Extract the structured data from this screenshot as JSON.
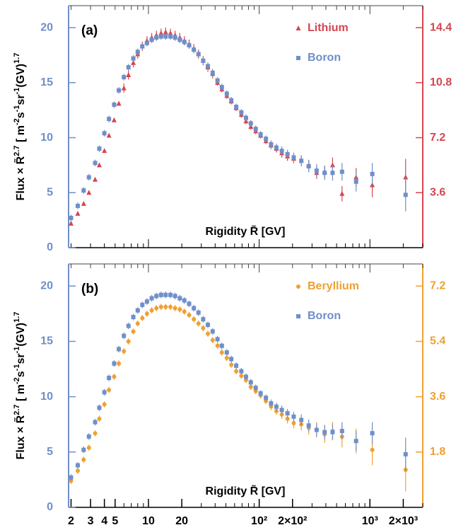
{
  "chart_data": [
    {
      "type": "scatter",
      "panel_label": "(a)",
      "xlabel": "Rigidity R̃ [GV]",
      "ylabel": [
        "Flux × R̃",
        "2.7",
        " [ m",
        "-2",
        "s",
        "-1",
        "sr",
        "-1",
        "(GV)",
        "1.7"
      ],
      "xlog": true,
      "xlim": [
        1.9,
        3000
      ],
      "ylim": [
        0,
        22
      ],
      "yticks": [
        0,
        5,
        10,
        15,
        20
      ],
      "y2lim": [
        0,
        15.84
      ],
      "y2ticks": [
        3.6,
        7.2,
        10.8,
        14.4
      ],
      "legend": "upper right",
      "x": [
        2.0,
        2.3,
        2.6,
        2.9,
        3.3,
        3.6,
        4.0,
        4.4,
        4.9,
        5.4,
        6.0,
        6.6,
        7.3,
        8.0,
        8.8,
        9.7,
        10.7,
        11.8,
        13,
        14.3,
        15.8,
        17.4,
        19.2,
        21.1,
        23.3,
        25.7,
        28.3,
        31.2,
        34.4,
        38,
        42,
        46,
        51,
        56,
        62,
        69,
        76,
        84,
        93,
        103,
        115,
        128,
        143,
        160,
        180,
        205,
        240,
        280,
        330,
        390,
        460,
        560,
        750,
        1050,
        2100
      ],
      "series": [
        {
          "name": "Lithium",
          "color": "#d4464f",
          "marker": "triangle",
          "axis": "y2",
          "values": [
            1.58,
            2.23,
            2.88,
            3.6,
            4.46,
            5.4,
            6.34,
            7.34,
            8.35,
            9.43,
            10.44,
            11.3,
            12.1,
            12.67,
            13.18,
            13.54,
            13.75,
            13.9,
            14.04,
            14.11,
            14.04,
            13.9,
            13.75,
            13.54,
            13.32,
            13.03,
            12.67,
            12.24,
            11.81,
            11.38,
            10.8,
            10.37,
            9.94,
            9.58,
            9.14,
            8.71,
            8.28,
            7.92,
            7.63,
            7.34,
            6.98,
            6.7,
            6.48,
            6.19,
            5.98,
            5.83,
            5.69,
            5.4,
            4.9,
            4.97,
            5.4,
            3.53,
            4.61,
            4.1,
            4.61
          ],
          "errors": [
            0.1,
            0.1,
            0.1,
            0.1,
            0.1,
            0.1,
            0.1,
            0.1,
            0.1,
            0.1,
            0.3,
            0.3,
            0.3,
            0.3,
            0.3,
            0.3,
            0.3,
            0.3,
            0.3,
            0.3,
            0.3,
            0.3,
            0.3,
            0.3,
            0.3,
            0.3,
            0.3,
            0.3,
            0.3,
            0.3,
            0.2,
            0.2,
            0.2,
            0.2,
            0.2,
            0.2,
            0.2,
            0.2,
            0.2,
            0.2,
            0.2,
            0.25,
            0.25,
            0.3,
            0.3,
            0.3,
            0.35,
            0.35,
            0.4,
            0.4,
            0.5,
            0.5,
            0.6,
            0.8,
            1.2
          ]
        },
        {
          "name": "Boron",
          "color": "#6f8fc9",
          "marker": "square",
          "axis": "y",
          "values": [
            2.7,
            3.8,
            5.2,
            6.4,
            7.7,
            9.0,
            10.4,
            11.7,
            13.0,
            14.3,
            15.5,
            16.4,
            17.2,
            17.8,
            18.3,
            18.6,
            18.9,
            19.1,
            19.2,
            19.2,
            19.2,
            19.1,
            18.9,
            18.7,
            18.4,
            18.0,
            17.6,
            17.0,
            16.5,
            15.9,
            15.2,
            14.6,
            14.0,
            13.4,
            12.8,
            12.3,
            11.8,
            11.3,
            10.8,
            10.3,
            9.9,
            9.4,
            9.1,
            8.8,
            8.5,
            8.2,
            7.9,
            7.4,
            7.0,
            6.8,
            6.8,
            6.9,
            6.0,
            6.7,
            4.8
          ],
          "errors": [
            0.3,
            0.3,
            0.3,
            0.3,
            0.3,
            0.3,
            0.3,
            0.3,
            0.3,
            0.3,
            0.3,
            0.3,
            0.3,
            0.3,
            0.3,
            0.3,
            0.3,
            0.3,
            0.3,
            0.3,
            0.3,
            0.3,
            0.3,
            0.3,
            0.3,
            0.3,
            0.3,
            0.3,
            0.3,
            0.3,
            0.3,
            0.3,
            0.3,
            0.3,
            0.3,
            0.3,
            0.3,
            0.3,
            0.3,
            0.3,
            0.3,
            0.35,
            0.35,
            0.4,
            0.4,
            0.45,
            0.5,
            0.55,
            0.6,
            0.65,
            0.7,
            0.8,
            0.9,
            1.0,
            1.5
          ]
        }
      ]
    },
    {
      "type": "scatter",
      "panel_label": "(b)",
      "xlabel": "Rigidity R̃ [GV]",
      "ylabel": [
        "Flux × R̃",
        "2.7",
        " [ m",
        "-2",
        "s",
        "-1",
        "sr",
        "-1",
        "(GV)",
        "1.7"
      ],
      "xlog": true,
      "xlim": [
        1.9,
        3000
      ],
      "xticks": [
        2,
        3,
        4,
        5,
        10,
        20,
        {
          "value": 100,
          "label": "10²"
        },
        {
          "value": 200,
          "label": "2×10²"
        },
        {
          "value": 1000,
          "label": "10³"
        },
        {
          "value": 2000,
          "label": "2×10³"
        }
      ],
      "ylim": [
        0,
        22
      ],
      "yticks": [
        0,
        5,
        10,
        15,
        20
      ],
      "y2lim": [
        0,
        7.92
      ],
      "y2ticks": [
        1.8,
        3.6,
        5.4,
        7.2
      ],
      "legend": "upper right",
      "x": [
        2.0,
        2.3,
        2.6,
        2.9,
        3.3,
        3.6,
        4.0,
        4.4,
        4.9,
        5.4,
        6.0,
        6.6,
        7.3,
        8.0,
        8.8,
        9.7,
        10.7,
        11.8,
        13,
        14.3,
        15.8,
        17.4,
        19.2,
        21.1,
        23.3,
        25.7,
        28.3,
        31.2,
        34.4,
        38,
        42,
        46,
        51,
        56,
        62,
        69,
        76,
        84,
        93,
        103,
        115,
        128,
        143,
        160,
        180,
        205,
        240,
        280,
        330,
        390,
        460,
        560,
        750,
        1050,
        2100
      ],
      "series": [
        {
          "name": "Beryllium",
          "color": "#f0a030",
          "marker": "circle",
          "axis": "y2",
          "values": [
            0.86,
            1.19,
            1.55,
            1.94,
            2.41,
            2.88,
            3.35,
            3.82,
            4.25,
            4.68,
            5.08,
            5.4,
            5.72,
            5.98,
            6.16,
            6.3,
            6.41,
            6.48,
            6.52,
            6.52,
            6.52,
            6.48,
            6.44,
            6.37,
            6.26,
            6.12,
            5.98,
            5.83,
            5.65,
            5.44,
            5.26,
            5.04,
            4.86,
            4.64,
            4.43,
            4.28,
            4.14,
            3.92,
            3.78,
            3.64,
            3.46,
            3.28,
            3.13,
            3.02,
            2.88,
            2.74,
            2.7,
            2.59,
            2.52,
            2.38,
            2.48,
            2.3,
            2.16,
            1.87,
            1.22
          ],
          "errors": [
            0.1,
            0.1,
            0.1,
            0.1,
            0.1,
            0.1,
            0.1,
            0.1,
            0.1,
            0.1,
            0.1,
            0.1,
            0.1,
            0.1,
            0.1,
            0.1,
            0.1,
            0.1,
            0.1,
            0.1,
            0.1,
            0.1,
            0.1,
            0.1,
            0.1,
            0.1,
            0.1,
            0.1,
            0.1,
            0.1,
            0.1,
            0.1,
            0.1,
            0.1,
            0.1,
            0.1,
            0.1,
            0.1,
            0.1,
            0.1,
            0.1,
            0.12,
            0.12,
            0.14,
            0.15,
            0.17,
            0.2,
            0.22,
            0.25,
            0.28,
            0.3,
            0.35,
            0.4,
            0.5,
            0.7
          ]
        },
        {
          "name": "Boron",
          "color": "#6f8fc9",
          "marker": "square",
          "axis": "y",
          "values": [
            2.7,
            3.8,
            5.2,
            6.4,
            7.7,
            9.0,
            10.4,
            11.7,
            13.0,
            14.3,
            15.5,
            16.4,
            17.2,
            17.8,
            18.3,
            18.6,
            18.9,
            19.1,
            19.2,
            19.2,
            19.2,
            19.1,
            18.9,
            18.7,
            18.4,
            18.0,
            17.6,
            17.0,
            16.5,
            15.9,
            15.2,
            14.6,
            14.0,
            13.4,
            12.8,
            12.3,
            11.8,
            11.3,
            10.8,
            10.3,
            9.9,
            9.4,
            9.1,
            8.8,
            8.5,
            8.2,
            7.9,
            7.4,
            7.0,
            6.8,
            6.8,
            6.9,
            6.0,
            6.7,
            4.8
          ],
          "errors": [
            0.3,
            0.3,
            0.3,
            0.3,
            0.3,
            0.3,
            0.3,
            0.3,
            0.3,
            0.3,
            0.3,
            0.3,
            0.3,
            0.3,
            0.3,
            0.3,
            0.3,
            0.3,
            0.3,
            0.3,
            0.3,
            0.3,
            0.3,
            0.3,
            0.3,
            0.3,
            0.3,
            0.3,
            0.3,
            0.3,
            0.3,
            0.3,
            0.3,
            0.3,
            0.3,
            0.3,
            0.3,
            0.3,
            0.3,
            0.3,
            0.3,
            0.35,
            0.35,
            0.4,
            0.4,
            0.45,
            0.5,
            0.55,
            0.6,
            0.65,
            0.7,
            0.8,
            0.9,
            1.0,
            1.5
          ]
        }
      ]
    }
  ]
}
